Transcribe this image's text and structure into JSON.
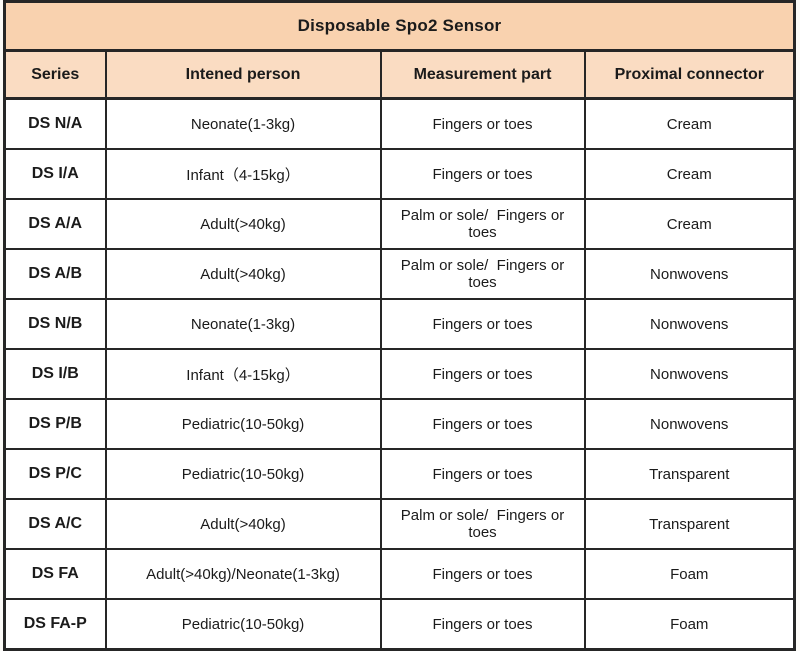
{
  "table": {
    "title": "Disposable Spo2 Sensor",
    "columns": [
      "Series",
      "Intened person",
      "Measurement part",
      "Proximal connector"
    ],
    "rows": [
      {
        "series": "DS N/A",
        "person": "Neonate(1-3kg)",
        "part": "Fingers or toes",
        "connector": "Cream"
      },
      {
        "series": "DS I/A",
        "person": "Infant（4-15kg）",
        "part": "Fingers or toes",
        "connector": "Cream"
      },
      {
        "series": "DS A/A",
        "person": "Adult(>40kg)",
        "part": "Palm or sole/  Fingers or toes",
        "connector": "Cream"
      },
      {
        "series": "DS A/B",
        "person": "Adult(>40kg)",
        "part": "Palm or sole/  Fingers or toes",
        "connector": "Nonwovens"
      },
      {
        "series": "DS N/B",
        "person": "Neonate(1-3kg)",
        "part": "Fingers or toes",
        "connector": "Nonwovens"
      },
      {
        "series": "DS I/B",
        "person": "Infant（4-15kg）",
        "part": "Fingers or toes",
        "connector": "Nonwovens"
      },
      {
        "series": "DS P/B",
        "person": "Pediatric(10-50kg)",
        "part": "Fingers or toes",
        "connector": "Nonwovens"
      },
      {
        "series": "DS P/C",
        "person": "Pediatric(10-50kg)",
        "part": "Fingers or toes",
        "connector": "Transparent"
      },
      {
        "series": "DS A/C",
        "person": "Adult(>40kg)",
        "part": "Palm or sole/  Fingers or toes",
        "connector": "Transparent"
      },
      {
        "series": "DS FA",
        "person": "Adult(>40kg)/Neonate(1-3kg)",
        "part": "Fingers or toes",
        "connector": "Foam"
      },
      {
        "series": "DS FA-P",
        "person": "Pediatric(10-50kg)",
        "part": "Fingers or toes",
        "connector": "Foam"
      }
    ],
    "colors": {
      "title_bg": "#f9d2af",
      "subheader_bg": "#fadcc2",
      "row_bg": "#ffffff",
      "border": "#262626",
      "text": "#1b1b1b"
    }
  }
}
